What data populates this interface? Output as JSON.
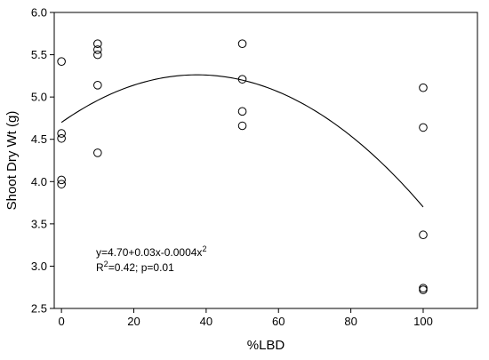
{
  "chart_data": {
    "type": "scatter",
    "xlabel": "%LBD",
    "ylabel": "Shoot Dry Wt (g)",
    "xlim": [
      -2,
      115
    ],
    "ylim": [
      2.5,
      6.0
    ],
    "x_ticks": [
      0,
      20,
      40,
      60,
      80,
      100
    ],
    "y_ticks": [
      2.5,
      3.0,
      3.5,
      4.0,
      4.5,
      5.0,
      5.5,
      6.0
    ],
    "x_tick_labels": [
      "0",
      "20",
      "40",
      "60",
      "80",
      "100"
    ],
    "y_tick_labels": [
      "2.5",
      "3.0",
      "3.5",
      "4.0",
      "4.5",
      "5.0",
      "5.5",
      "6.0"
    ],
    "points": [
      {
        "x": 0,
        "y": 5.42
      },
      {
        "x": 0,
        "y": 4.57
      },
      {
        "x": 0,
        "y": 4.51
      },
      {
        "x": 0,
        "y": 4.02
      },
      {
        "x": 0,
        "y": 3.97
      },
      {
        "x": 10,
        "y": 5.63
      },
      {
        "x": 10,
        "y": 5.56
      },
      {
        "x": 10,
        "y": 5.5
      },
      {
        "x": 10,
        "y": 5.14
      },
      {
        "x": 10,
        "y": 4.34
      },
      {
        "x": 50,
        "y": 5.63
      },
      {
        "x": 50,
        "y": 5.21
      },
      {
        "x": 50,
        "y": 4.83
      },
      {
        "x": 50,
        "y": 4.66
      },
      {
        "x": 100,
        "y": 5.11
      },
      {
        "x": 100,
        "y": 4.64
      },
      {
        "x": 100,
        "y": 3.37
      },
      {
        "x": 100,
        "y": 2.74
      },
      {
        "x": 100,
        "y": 2.72
      }
    ],
    "fit": {
      "type": "quadratic",
      "coefficients": [
        4.7,
        0.03,
        -0.0004
      ],
      "x_range": [
        0,
        100
      ],
      "line_color": "#000000"
    },
    "marker": "open-circle",
    "grid": false,
    "equation_line1_prefix": "y=4.70+0.03x-0.0004x",
    "equation_line1_sup": "2",
    "equation_line2_prefix": "R",
    "equation_line2_sup": "2",
    "equation_line2_rest": "=0.42; p=0.01"
  }
}
